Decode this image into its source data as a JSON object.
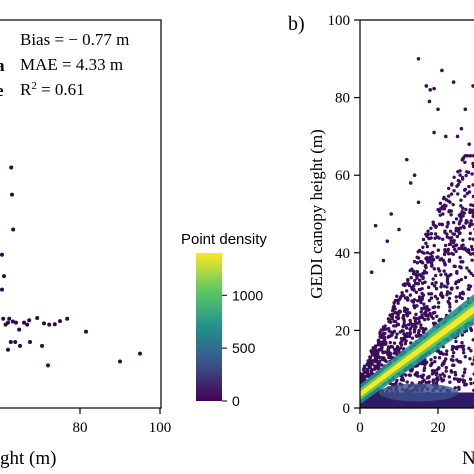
{
  "chart_data": [
    {
      "panel": "a",
      "type": "scatter",
      "xlabel_visible": "ght (m)",
      "x_ticks": [
        80,
        100
      ],
      "xlim": [
        60,
        100
      ],
      "ylim": [
        0,
        100
      ],
      "stats": {
        "bias_label": "Bias = − 0.77 m",
        "mae_label": "MAE = 4.33 m",
        "r2_prefix": "R",
        "r2_sup": "2",
        "r2_value": " = 0.61"
      },
      "edge_fragments": [
        "a",
        "e"
      ],
      "points": [
        {
          "x": 60.5,
          "y": 39.5
        },
        {
          "x": 61.0,
          "y": 34.0
        },
        {
          "x": 62.8,
          "y": 62.0
        },
        {
          "x": 63.0,
          "y": 55.0
        },
        {
          "x": 63.3,
          "y": 46.0
        },
        {
          "x": 62.7,
          "y": 17.0
        },
        {
          "x": 62.3,
          "y": 23.0
        },
        {
          "x": 60.5,
          "y": 30.5
        },
        {
          "x": 60.8,
          "y": 23.0
        },
        {
          "x": 62.0,
          "y": 22.0
        },
        {
          "x": 61.4,
          "y": 21.5
        },
        {
          "x": 63.2,
          "y": 22.3
        },
        {
          "x": 64.0,
          "y": 22.0
        },
        {
          "x": 64.8,
          "y": 20.2
        },
        {
          "x": 66.0,
          "y": 22.0
        },
        {
          "x": 66.8,
          "y": 21.5
        },
        {
          "x": 67.3,
          "y": 22.6
        },
        {
          "x": 69.3,
          "y": 23.2
        },
        {
          "x": 71.0,
          "y": 21.8
        },
        {
          "x": 72.3,
          "y": 21.5
        },
        {
          "x": 73.7,
          "y": 21.6
        },
        {
          "x": 75.0,
          "y": 22.4
        },
        {
          "x": 76.8,
          "y": 23.0
        },
        {
          "x": 81.5,
          "y": 19.7
        },
        {
          "x": 62.0,
          "y": 15.0
        },
        {
          "x": 63.8,
          "y": 17.0
        },
        {
          "x": 65.0,
          "y": 16.0
        },
        {
          "x": 67.5,
          "y": 17.0
        },
        {
          "x": 70.5,
          "y": 16.0
        },
        {
          "x": 72.0,
          "y": 11.0
        },
        {
          "x": 90.0,
          "y": 12.0
        },
        {
          "x": 95.0,
          "y": 14.0
        }
      ]
    },
    {
      "panel": "b",
      "panel_label": "b)",
      "type": "scatter",
      "ylabel": "GEDI canopy height (m)",
      "xlabel_visible": "N",
      "y_ticks": [
        0,
        20,
        40,
        60,
        80,
        100
      ],
      "x_ticks": [
        0,
        20
      ],
      "xlim": [
        0,
        100
      ],
      "ylim": [
        0,
        100
      ],
      "description_series": "dense point cloud colored by point density",
      "outliers": [
        {
          "x": 15,
          "y": 90
        },
        {
          "x": 21,
          "y": 87
        },
        {
          "x": 17,
          "y": 83
        },
        {
          "x": 18,
          "y": 82
        },
        {
          "x": 19,
          "y": 82.3
        },
        {
          "x": 17.8,
          "y": 79
        },
        {
          "x": 20,
          "y": 77
        },
        {
          "x": 19,
          "y": 71
        },
        {
          "x": 27,
          "y": 77
        },
        {
          "x": 29,
          "y": 83
        },
        {
          "x": 30,
          "y": 77.5
        },
        {
          "x": 25,
          "y": 70
        },
        {
          "x": 12,
          "y": 64
        },
        {
          "x": 13,
          "y": 58
        },
        {
          "x": 8,
          "y": 50
        },
        {
          "x": 4,
          "y": 47
        },
        {
          "x": 7,
          "y": 43
        },
        {
          "x": 15,
          "y": 53
        },
        {
          "x": 22,
          "y": 70
        },
        {
          "x": 26,
          "y": 72
        },
        {
          "x": 28,
          "y": 68
        },
        {
          "x": 30,
          "y": 90
        },
        {
          "x": 24,
          "y": 84
        },
        {
          "x": 10,
          "y": 46
        },
        {
          "x": 6,
          "y": 38
        },
        {
          "x": 3,
          "y": 35
        },
        {
          "x": 14,
          "y": 60
        },
        {
          "x": 29,
          "y": 63
        }
      ]
    }
  ],
  "colorbar": {
    "title": "Point density",
    "ticks": [
      0,
      500,
      1000
    ],
    "range": [
      0,
      1400
    ],
    "colors": [
      "#440154",
      "#3b528b",
      "#21918c",
      "#5ec962",
      "#fde725"
    ]
  }
}
